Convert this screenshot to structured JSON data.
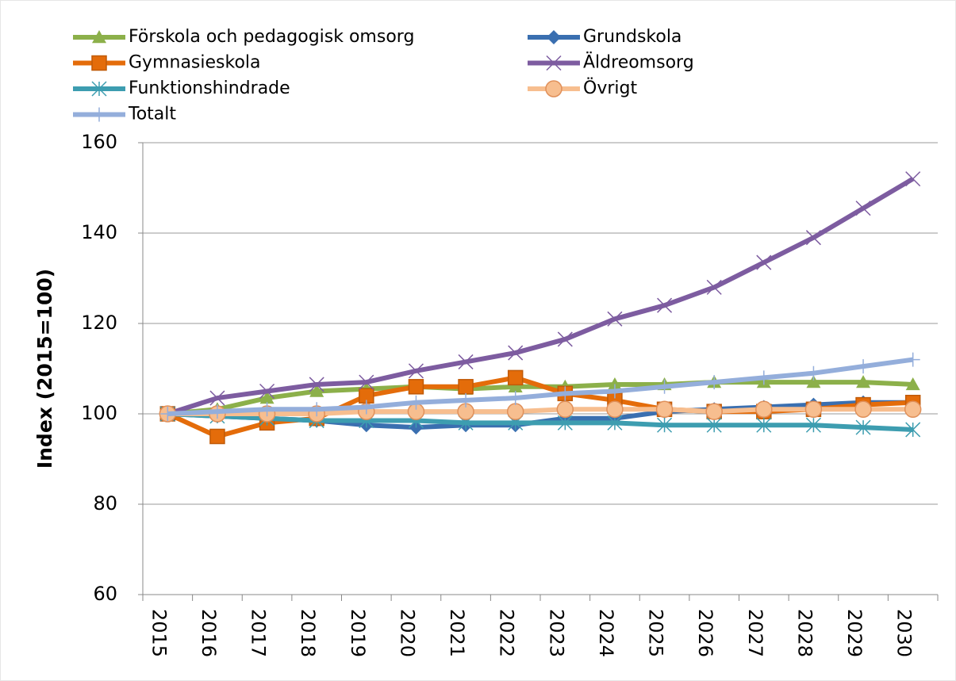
{
  "chart_data": {
    "type": "line",
    "ylabel": "Index (2015=100)",
    "categories": [
      "2015",
      "2016",
      "2017",
      "2018",
      "2019",
      "2020",
      "2021",
      "2022",
      "2023",
      "2024",
      "2025",
      "2026",
      "2027",
      "2028",
      "2029",
      "2030"
    ],
    "ylim": [
      60,
      160
    ],
    "yticks": [
      60,
      80,
      100,
      120,
      140,
      160
    ],
    "grid": true,
    "legend": "top",
    "series": [
      {
        "name": "Förskola och pedagogisk omsorg",
        "color": "#8cb04a",
        "marker": "triangle",
        "values": [
          100,
          101,
          103.5,
          105,
          105.5,
          106,
          105.5,
          106,
          106,
          106.5,
          106.5,
          107,
          107,
          107,
          107,
          106.5
        ]
      },
      {
        "name": "Grundskola",
        "color": "#3a6fb0",
        "marker": "diamond",
        "values": [
          100,
          99.5,
          99,
          98.5,
          97.5,
          97,
          97.5,
          97.5,
          99,
          99,
          100.5,
          101,
          101.5,
          102,
          102.5,
          102.5
        ]
      },
      {
        "name": "Gymnasieskola",
        "color": "#e46c0a",
        "marker": "square",
        "values": [
          100,
          95,
          98,
          99,
          104,
          106,
          106,
          108,
          104.5,
          103,
          101,
          100.5,
          100.5,
          101,
          102,
          102.5
        ]
      },
      {
        "name": "Äldreomsorg",
        "color": "#7d5ca0",
        "marker": "x",
        "values": [
          100,
          103.5,
          105,
          106.5,
          107,
          109.5,
          111.5,
          113.5,
          116.5,
          121,
          124,
          128,
          133.5,
          139,
          145.5,
          152
        ]
      },
      {
        "name": "Funktionshindrade",
        "color": "#3d9db0",
        "marker": "star",
        "values": [
          100,
          99.5,
          99,
          98.5,
          98.5,
          98.5,
          98,
          98,
          98,
          98,
          97.5,
          97.5,
          97.5,
          97.5,
          97,
          96.5
        ]
      },
      {
        "name": "Övrigt",
        "color": "#f7be8f",
        "marker": "circle",
        "values": [
          100,
          100,
          100,
          100,
          100.5,
          100.5,
          100.5,
          100.5,
          101,
          101,
          101,
          100.5,
          101,
          101,
          101,
          101
        ]
      },
      {
        "name": "Totalt",
        "color": "#94aedb",
        "marker": "plus",
        "values": [
          100,
          100.5,
          101,
          101,
          101.5,
          102.5,
          103,
          103.5,
          104.5,
          105,
          106,
          107,
          108,
          109,
          110.5,
          112
        ]
      }
    ]
  }
}
